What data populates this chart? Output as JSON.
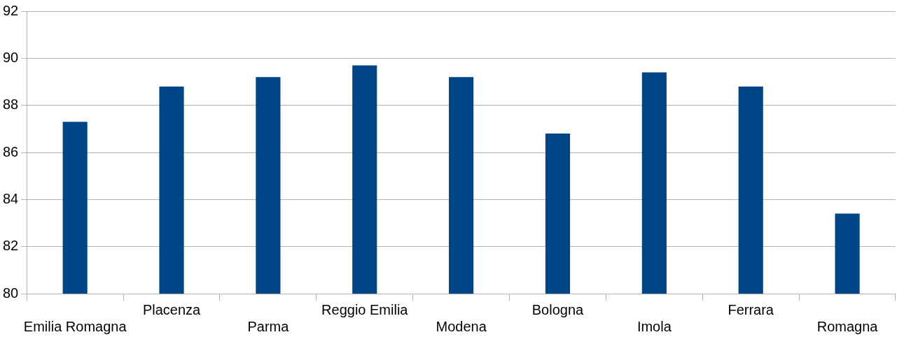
{
  "chart_data": {
    "type": "bar",
    "categories": [
      "Emilia Romagna",
      "Placenza",
      "Parma",
      "Reggio Emilia",
      "Modena",
      "Bologna",
      "Imola",
      "Ferrara",
      "Romagna"
    ],
    "values": [
      87.3,
      88.8,
      89.2,
      89.7,
      89.2,
      86.8,
      89.4,
      88.8,
      83.4
    ],
    "color": "#004586",
    "ylim": [
      80,
      92
    ],
    "yticks": [
      80,
      82,
      84,
      86,
      88,
      90,
      92
    ],
    "grid": "y",
    "legend": false
  }
}
